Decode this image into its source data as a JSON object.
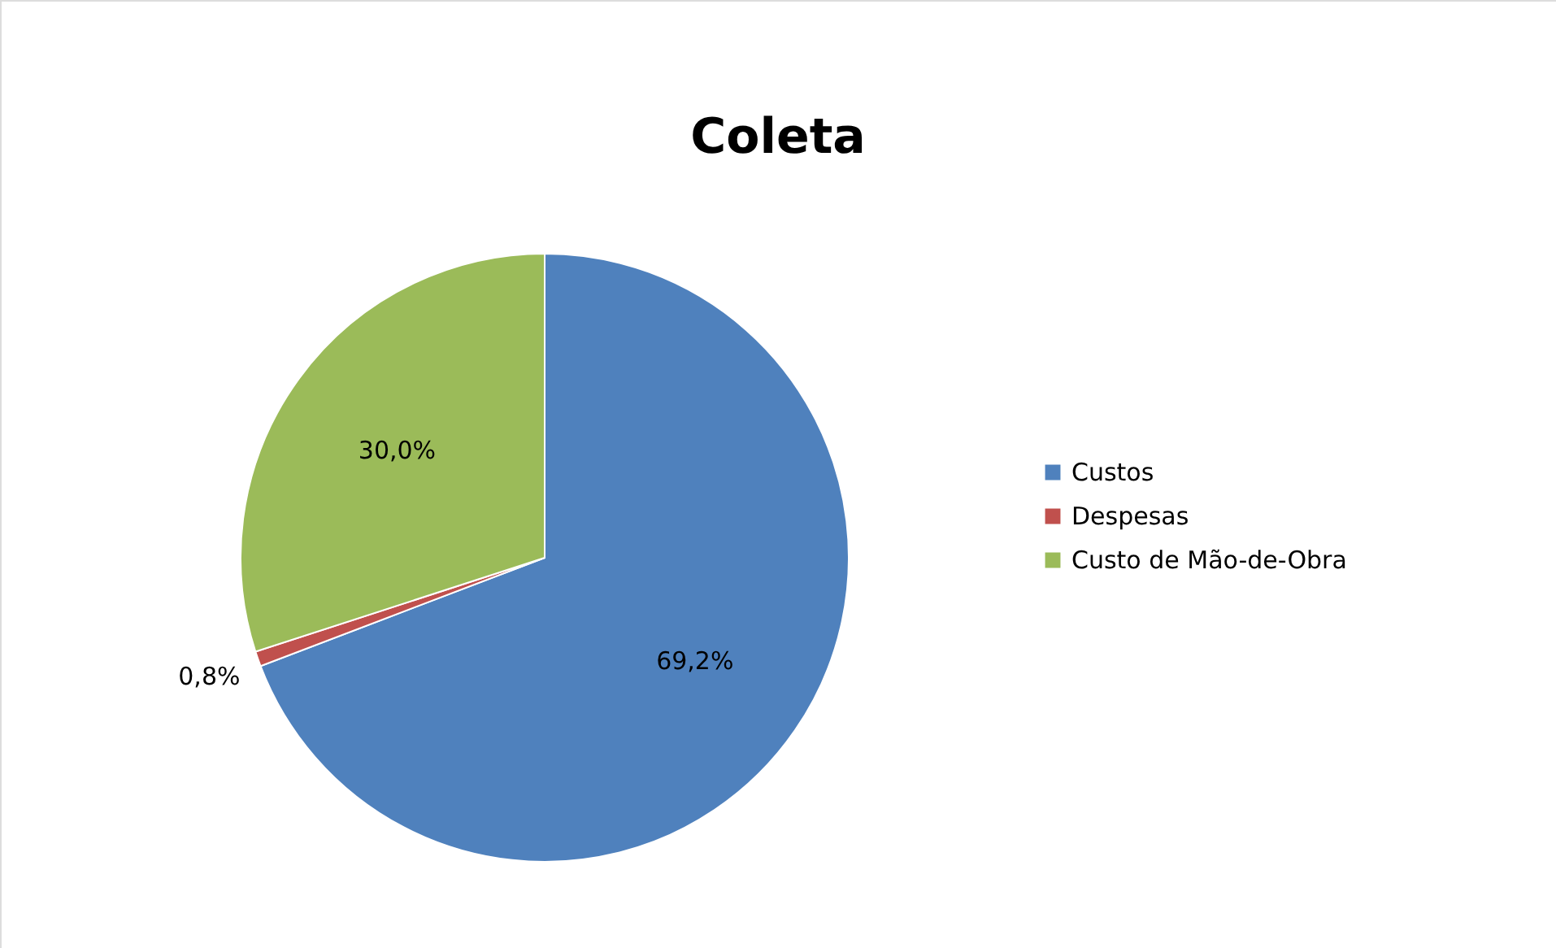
{
  "chart_data": {
    "type": "pie",
    "title": "Coleta",
    "categories": [
      "Custos",
      "Despesas",
      "Custo de Mão-de-Obra"
    ],
    "values": [
      69.2,
      0.8,
      30.0
    ],
    "colors": [
      "#4f81bd",
      "#c0504d",
      "#9bbb59"
    ],
    "value_labels": [
      "69,2%",
      "0,8%",
      "30,0%"
    ],
    "legend": "right"
  }
}
